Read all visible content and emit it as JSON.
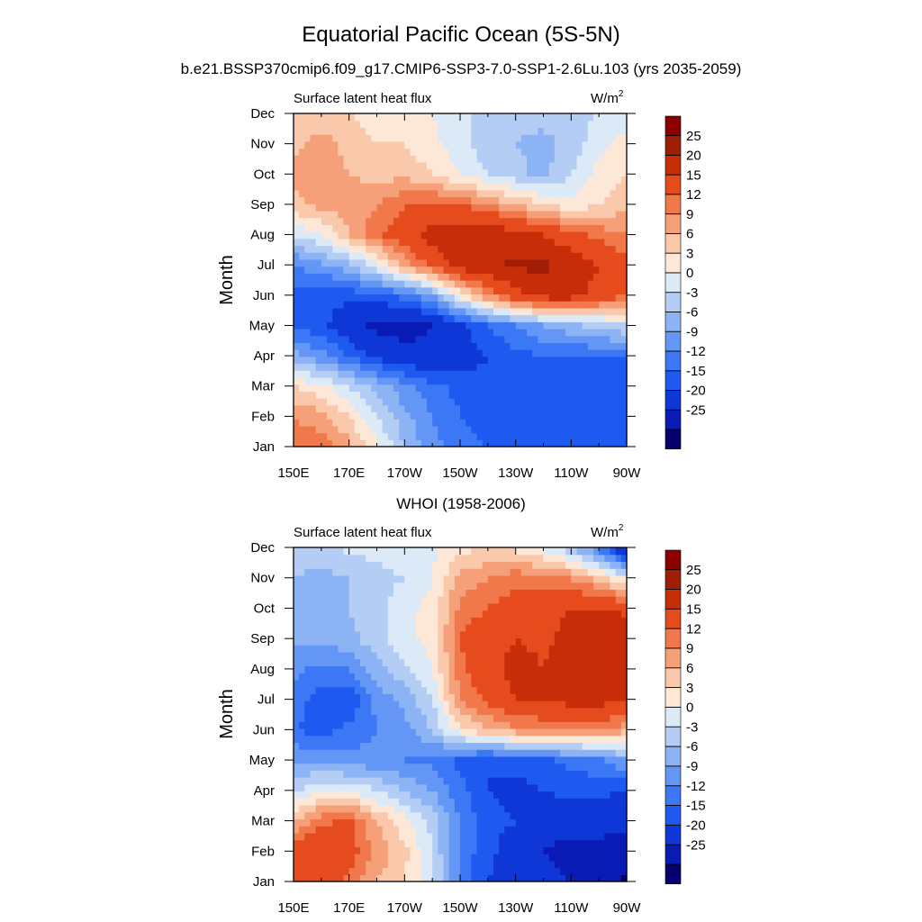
{
  "figure": {
    "title": "Equatorial Pacific Ocean (5S-5N)",
    "subtitle": "b.e21.BSSP370cmip6.f09_g17.CMIP6-SSP3-7.0-SSP1-2.6Lu.103 (yrs 2035-2059)"
  },
  "levels": [
    -25,
    -20,
    -15,
    -12,
    -9,
    -6,
    -3,
    0,
    3,
    6,
    9,
    12,
    15,
    20,
    25
  ],
  "palette": [
    "#05006e",
    "#0a1ab4",
    "#0f37d7",
    "#1e5af0",
    "#3c78f5",
    "#6496f5",
    "#8cb4f5",
    "#b4cdf5",
    "#dceaf7",
    "#fde8d8",
    "#fac8aa",
    "#f5a078",
    "#f0784b",
    "#e64b1e",
    "#c82d0a",
    "#a01e05",
    "#8c0000"
  ],
  "chart_data": [
    {
      "type": "heatmap",
      "panel_title": "",
      "left_label": "Surface latent heat flux",
      "units": "W/m",
      "units_sup": "2",
      "xlabel": "",
      "ylabel": "Month",
      "x_ticks": [
        "150E",
        "170E",
        "170W",
        "150W",
        "130W",
        "110W",
        "90W"
      ],
      "x_range_deg_east": [
        150,
        270
      ],
      "y_ticks": [
        "Jan",
        "Feb",
        "Mar",
        "Apr",
        "May",
        "Jun",
        "Jul",
        "Aug",
        "Sep",
        "Oct",
        "Nov",
        "Dec"
      ],
      "colorbar_levels": [
        "25",
        "20",
        "15",
        "12",
        "9",
        "6",
        "3",
        "0",
        "-3",
        "-6",
        "-9",
        "-12",
        "-15",
        "-20",
        "-25"
      ],
      "longitudes": [
        150,
        160,
        170,
        180,
        190,
        200,
        210,
        220,
        230,
        240,
        250,
        260,
        270
      ],
      "months": [
        "Jan",
        "Feb",
        "Mar",
        "Apr",
        "May",
        "Jun",
        "Jul",
        "Aug",
        "Sep",
        "Oct",
        "Nov",
        "Dec"
      ],
      "values": [
        [
          14,
          14,
          10,
          4,
          -3,
          -8,
          -10,
          -12,
          -14,
          -15,
          -15,
          -15,
          -15
        ],
        [
          12,
          10,
          6,
          0,
          -5,
          -9,
          -12,
          -14,
          -15,
          -15,
          -15,
          -15,
          -15
        ],
        [
          6,
          4,
          0,
          -4,
          -8,
          -11,
          -13,
          -14,
          -15,
          -14,
          -13,
          -13,
          -13
        ],
        [
          -5,
          -8,
          -12,
          -16,
          -18,
          -19,
          -17,
          -15,
          -13,
          -12,
          -12,
          -12,
          -12
        ],
        [
          -12,
          -14,
          -18,
          -21,
          -22,
          -20,
          -16,
          -12,
          -9,
          -6,
          -4,
          -2,
          0
        ],
        [
          -14,
          -14,
          -14,
          -13,
          -11,
          -6,
          4,
          12,
          18,
          22,
          22,
          18,
          15
        ],
        [
          -9,
          -7,
          -4,
          2,
          10,
          16,
          22,
          24,
          26,
          26,
          24,
          20,
          16
        ],
        [
          0,
          3,
          9,
          14,
          18,
          22,
          24,
          24,
          22,
          20,
          16,
          14,
          12
        ],
        [
          8,
          10,
          10,
          12,
          15,
          16,
          15,
          12,
          9,
          6,
          4,
          6,
          8
        ],
        [
          10,
          12,
          9,
          8,
          8,
          6,
          3,
          0,
          -2,
          -4,
          0,
          4,
          6
        ],
        [
          8,
          10,
          8,
          6,
          6,
          4,
          1,
          -2,
          -3,
          -4,
          -2,
          2,
          4
        ],
        [
          6,
          8,
          6,
          4,
          4,
          3,
          1,
          -1,
          -2,
          -2,
          -1,
          0,
          2
        ]
      ]
    },
    {
      "type": "heatmap",
      "panel_title": "WHOI (1958-2006)",
      "left_label": "Surface latent heat flux",
      "units": "W/m",
      "units_sup": "2",
      "xlabel": "",
      "ylabel": "Month",
      "x_ticks": [
        "150E",
        "170E",
        "170W",
        "150W",
        "130W",
        "110W",
        "90W"
      ],
      "x_range_deg_east": [
        150,
        270
      ],
      "y_ticks": [
        "Jan",
        "Feb",
        "Mar",
        "Apr",
        "May",
        "Jun",
        "Jul",
        "Aug",
        "Sep",
        "Oct",
        "Nov",
        "Dec"
      ],
      "colorbar_levels": [
        "25",
        "20",
        "15",
        "12",
        "9",
        "6",
        "3",
        "0",
        "-3",
        "-6",
        "-9",
        "-12",
        "-15",
        "-20",
        "-25"
      ],
      "longitudes": [
        150,
        160,
        170,
        180,
        190,
        200,
        210,
        220,
        230,
        240,
        250,
        260,
        270
      ],
      "months": [
        "Jan",
        "Feb",
        "Mar",
        "Apr",
        "May",
        "Jun",
        "Jul",
        "Aug",
        "Sep",
        "Oct",
        "Nov",
        "Dec"
      ],
      "values": [
        [
          15,
          17,
          14,
          9,
          6,
          0,
          -10,
          -15,
          -17,
          -18,
          -20,
          -22,
          -26
        ],
        [
          18,
          20,
          17,
          11,
          7,
          0,
          -10,
          -14,
          -17,
          -20,
          -22,
          -22,
          -24
        ],
        [
          9,
          14,
          16,
          9,
          4,
          -1,
          -9,
          -14,
          -15,
          -17,
          -18,
          -17,
          -18
        ],
        [
          -1,
          3,
          3,
          0,
          -3,
          -6,
          -11,
          -15,
          -16,
          -15,
          -14,
          -14,
          -16
        ],
        [
          -6,
          -7,
          -8,
          -8,
          -9,
          -10,
          -13,
          -15,
          -14,
          -13,
          -11,
          -10,
          -6
        ],
        [
          -12,
          -13,
          -11,
          -9,
          -7,
          -3,
          5,
          9,
          11,
          12,
          12,
          12,
          10
        ],
        [
          -10,
          -14,
          -15,
          -8,
          -5,
          0,
          12,
          16,
          20,
          20,
          22,
          22,
          20
        ],
        [
          -8,
          -10,
          -9,
          -4,
          -1,
          3,
          14,
          18,
          22,
          20,
          22,
          22,
          21
        ],
        [
          -5,
          -5,
          -4,
          -1,
          2,
          4,
          15,
          18,
          20,
          19,
          22,
          24,
          23
        ],
        [
          -4,
          -3,
          -3,
          -1,
          2,
          4,
          13,
          15,
          17,
          18,
          20,
          20,
          19
        ],
        [
          -3,
          -4,
          -3,
          -1,
          0,
          3,
          10,
          12,
          14,
          13,
          12,
          8,
          2
        ],
        [
          -2,
          -1,
          1,
          1,
          2,
          2,
          5,
          6,
          5,
          2,
          -3,
          -10,
          -22
        ]
      ]
    }
  ]
}
